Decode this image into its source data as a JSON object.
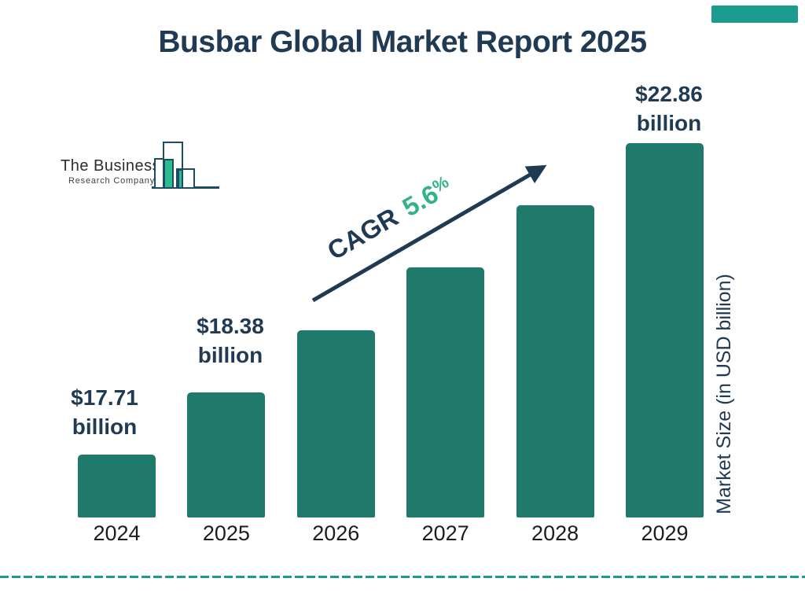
{
  "header": {
    "title": "Busbar Global Market Report 2025"
  },
  "logo": {
    "line1": "The Business",
    "line2": "Research Company"
  },
  "cagr": {
    "label": "CAGR",
    "value": "5.6",
    "percent": "%"
  },
  "y_axis_label": "Market Size (in USD billion)",
  "chart_data": {
    "type": "bar",
    "title": "Busbar Global Market Report 2025",
    "categories": [
      "2024",
      "2025",
      "2026",
      "2027",
      "2028",
      "2029"
    ],
    "values": [
      17.71,
      18.38,
      19.41,
      20.5,
      21.64,
      22.86
    ],
    "unit": "USD billion",
    "labeled_points": [
      {
        "year": "2024",
        "line1": "$17.71",
        "line2": "billion"
      },
      {
        "year": "2025",
        "line1": "$18.38",
        "line2": "billion"
      },
      {
        "year": "2029",
        "line1": "$22.86",
        "line2": "billion"
      }
    ],
    "annotation": "CAGR 5.6%",
    "xlabel": "",
    "ylabel": "Market Size (in USD billion)",
    "grid": false,
    "legend": "none"
  },
  "colors": {
    "navy": "#1f3a52",
    "bar_teal": "#207a6c",
    "accent_green": "#31b28b",
    "logo_green": "#2abd92",
    "logo_outline": "#1d4d60",
    "dash_teal": "#1d9a8e",
    "year_text": "#1d1d1d"
  }
}
